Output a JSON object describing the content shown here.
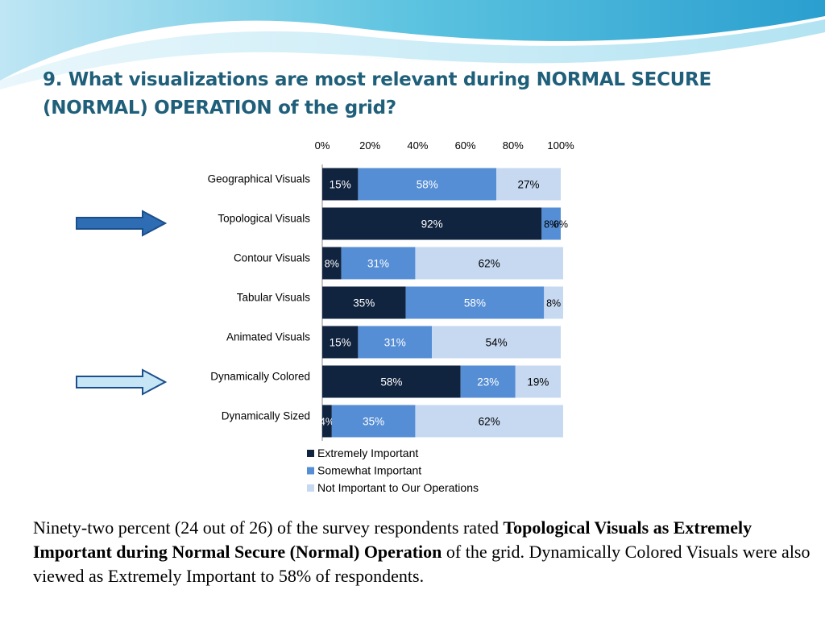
{
  "slide": {
    "title_line1": "9. What visualizations are most relevant during NORMAL SECURE",
    "title_line2": "(NORMAL) OPERATION of the grid?",
    "summary": {
      "part1": "Ninety-two percent (24 out of 26) of the survey respondents rated ",
      "bold1": "Topological Visuals as Extremely Important during Normal Secure (Normal) Operation",
      "part2": " of the grid. Dynamically Colored Visuals were also viewed as Extremely Important to 58% of respondents."
    }
  },
  "chart_data": {
    "type": "bar",
    "orientation": "horizontal",
    "stacked": "percent",
    "categories": [
      "Geographical Visuals",
      "Topological Visuals",
      "Contour Visuals",
      "Tabular Visuals",
      "Animated Visuals",
      "Dynamically Colored",
      "Dynamically Sized"
    ],
    "series": [
      {
        "name": "Extremely Important",
        "color": "#10233f",
        "values": [
          15,
          92,
          8,
          35,
          15,
          58,
          4
        ]
      },
      {
        "name": "Somewhat Important",
        "color": "#558ed5",
        "values": [
          58,
          8,
          31,
          58,
          31,
          23,
          35
        ]
      },
      {
        "name": "Not Important to Our Operations",
        "color": "#c6d9f1",
        "values": [
          27,
          0,
          62,
          8,
          54,
          19,
          62
        ]
      }
    ],
    "xticks": [
      "0%",
      "20%",
      "40%",
      "60%",
      "80%",
      "100%"
    ],
    "xlim": [
      0,
      100
    ],
    "xaxis_position": "top",
    "grid": false,
    "legend_position": "bottom",
    "highlighted_categories": [
      {
        "category": "Topological Visuals",
        "arrow_color": "#2e6db4"
      },
      {
        "category": "Dynamically Colored",
        "arrow_color": "#c6e6f5"
      }
    ]
  }
}
